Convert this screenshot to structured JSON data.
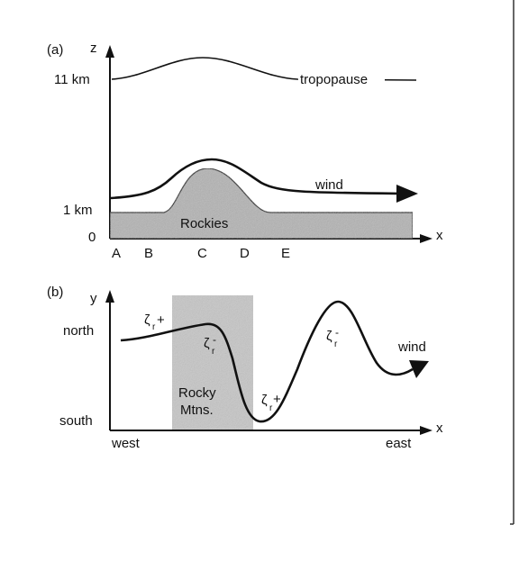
{
  "panel_a": {
    "tag": "(a)",
    "z_axis": "z",
    "x_axis": "x",
    "y_ticks": {
      "top": "11 km",
      "mid": "1 km",
      "zero": "0"
    },
    "tropopause_label": "tropopause",
    "wind_label": "wind",
    "mountain_label": "Rockies",
    "points": [
      "A",
      "B",
      "C",
      "D",
      "E"
    ]
  },
  "panel_b": {
    "tag": "(b)",
    "y_axis": "y",
    "x_axis": "x",
    "north": "north",
    "south": "south",
    "west": "west",
    "east": "east",
    "mountains_line1": "Rocky",
    "mountains_line2": "Mtns.",
    "wind_label": "wind",
    "zeta_symbol": "ζ",
    "zeta_sub": "r",
    "plus": "+",
    "minus": "-"
  },
  "colors": {
    "ink": "#111111",
    "mountain_fill": "#b3b3b3",
    "shade_fill": "#c6c6c6",
    "frame": "#333333"
  }
}
